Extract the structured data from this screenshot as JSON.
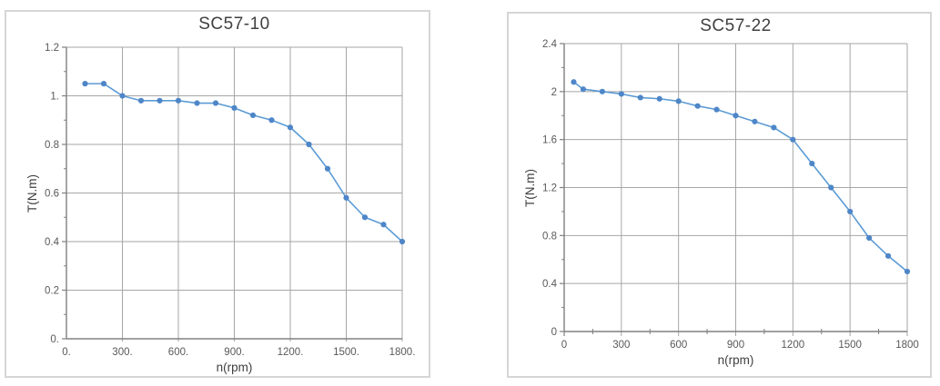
{
  "style": {
    "background": "#ffffff",
    "panel_border_color": "#d6d6d6",
    "grid_color": "#a6a6a6",
    "axis_color": "#808080",
    "tick_label_color": "#595959",
    "title_color": "#404040",
    "line_color": "#5b9bd5",
    "marker_color": "#4e86c8"
  },
  "chart_data": [
    {
      "type": "line",
      "title": "SC57-10",
      "xlabel": "n(rpm)",
      "ylabel": "T(N.m)",
      "xlim": [
        0,
        1800
      ],
      "ylim": [
        0,
        1.2
      ],
      "grid": true,
      "legend": "none",
      "x_tick_values": [
        0,
        300,
        600,
        900,
        1200,
        1500,
        1800
      ],
      "x_tick_labels": [
        "0.",
        "300.",
        "600.",
        "900.",
        "1200.",
        "1500.",
        "1800."
      ],
      "y_tick_values": [
        0,
        0.2,
        0.4,
        0.6,
        0.8,
        1.0,
        1.2
      ],
      "y_tick_labels": [
        "0.",
        "0.2",
        "0.4",
        "0.6",
        "0.8",
        "1.",
        "1.2"
      ],
      "y_minor_step": 0.1,
      "x_minor_step": 0,
      "line_color": "#5b9bd5",
      "marker_color": "#4e86c8",
      "series": [
        {
          "name": "T(N.m)",
          "x": [
            100,
            200,
            300,
            400,
            500,
            600,
            700,
            800,
            900,
            1000,
            1100,
            1200,
            1300,
            1400,
            1500,
            1600,
            1700,
            1800
          ],
          "y": [
            1.05,
            1.05,
            1.0,
            0.98,
            0.98,
            0.98,
            0.97,
            0.97,
            0.95,
            0.92,
            0.9,
            0.87,
            0.8,
            0.7,
            0.58,
            0.5,
            0.47,
            0.4
          ]
        }
      ]
    },
    {
      "type": "line",
      "title": "SC57-22",
      "xlabel": "n(rpm)",
      "ylabel": "T(N.m)",
      "xlim": [
        0,
        1800
      ],
      "ylim": [
        0,
        2.4
      ],
      "grid": true,
      "legend": "none",
      "x_tick_values": [
        0,
        300,
        600,
        900,
        1200,
        1500,
        1800
      ],
      "x_tick_labels": [
        "0",
        "300",
        "600",
        "900",
        "1200",
        "1500",
        "1800"
      ],
      "y_tick_values": [
        0,
        0.4,
        0.8,
        1.2,
        1.6,
        2.0,
        2.4
      ],
      "y_tick_labels": [
        "0",
        "0.4",
        "0.8",
        "1.2",
        "1.6",
        "2",
        "2.4"
      ],
      "y_minor_step": 0.2,
      "x_minor_step": 150,
      "line_color": "#5b9bd5",
      "marker_color": "#4e86c8",
      "series": [
        {
          "name": "T(N.m)",
          "x": [
            50,
            100,
            200,
            300,
            400,
            500,
            600,
            700,
            800,
            900,
            1000,
            1100,
            1200,
            1300,
            1400,
            1500,
            1600,
            1700,
            1800
          ],
          "y": [
            2.08,
            2.02,
            2.0,
            1.98,
            1.95,
            1.94,
            1.92,
            1.88,
            1.85,
            1.8,
            1.75,
            1.7,
            1.6,
            1.4,
            1.2,
            1.0,
            0.78,
            0.63,
            0.5
          ]
        }
      ]
    }
  ]
}
